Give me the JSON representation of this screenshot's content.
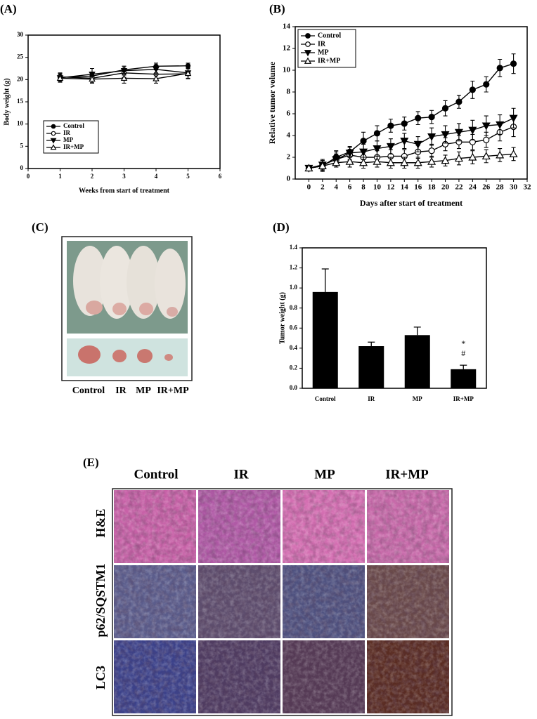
{
  "panel_labels": [
    "(A)",
    "(B)",
    "(C)",
    "(D)",
    "(E)"
  ],
  "chart_data": [
    {
      "type": "line",
      "x_label": "Weeks from start of treatment",
      "y_label": "Body weight (g)",
      "x": [
        1,
        2,
        3,
        4,
        5
      ],
      "xlim": [
        0,
        6
      ],
      "ylim": [
        0,
        30
      ],
      "xticks": [
        0,
        1,
        2,
        3,
        4,
        5,
        6
      ],
      "yticks": [
        0,
        5,
        10,
        15,
        20,
        25,
        30
      ],
      "legend": "lower left",
      "series": [
        {
          "name": "Control",
          "marker": "filled-circle",
          "color": "#000000",
          "values": [
            20.5,
            20.8,
            22.2,
            23.0,
            23.1
          ],
          "errors": [
            0.8,
            0.9,
            0.8,
            0.7,
            0.6
          ]
        },
        {
          "name": "IR",
          "marker": "open-circle",
          "color": "#000000",
          "values": [
            20.6,
            20.3,
            21.5,
            21.2,
            21.3
          ],
          "errors": [
            0.9,
            1.0,
            1.0,
            1.0,
            1.1
          ]
        },
        {
          "name": "MP",
          "marker": "filled-triangle-down",
          "color": "#000000",
          "values": [
            20.4,
            21.2,
            22.0,
            22.3,
            21.5
          ],
          "errors": [
            0.8,
            1.3,
            1.0,
            1.0,
            1.2
          ]
        },
        {
          "name": "IR+MP",
          "marker": "open-triangle-up",
          "color": "#000000",
          "values": [
            20.3,
            20.1,
            20.3,
            20.2,
            21.4
          ],
          "errors": [
            0.9,
            0.9,
            1.1,
            1.0,
            1.2
          ]
        }
      ]
    },
    {
      "type": "line",
      "x_label": "Days after start of treatment",
      "y_label": "Relative tumor volume",
      "x": [
        0,
        2,
        4,
        6,
        8,
        10,
        12,
        14,
        16,
        18,
        20,
        22,
        24,
        26,
        28,
        30
      ],
      "xlim": [
        -2,
        32
      ],
      "ylim": [
        0,
        14
      ],
      "xticks": [
        0,
        2,
        4,
        6,
        8,
        10,
        12,
        14,
        16,
        18,
        20,
        22,
        24,
        26,
        28,
        30,
        32
      ],
      "yticks": [
        0,
        2,
        4,
        6,
        8,
        10,
        12,
        14
      ],
      "legend": "upper left",
      "series": [
        {
          "name": "Control",
          "marker": "filled-circle",
          "color": "#000000",
          "values": [
            1.0,
            1.2,
            2.0,
            2.5,
            3.5,
            4.2,
            4.9,
            5.1,
            5.6,
            5.7,
            6.5,
            7.1,
            8.2,
            8.7,
            10.2,
            10.6
          ],
          "errors": [
            0.1,
            0.5,
            0.6,
            0.4,
            0.8,
            0.7,
            0.6,
            0.6,
            0.6,
            0.6,
            0.7,
            0.6,
            0.8,
            0.7,
            0.8,
            0.9
          ]
        },
        {
          "name": "IR",
          "marker": "open-circle",
          "color": "#000000",
          "values": [
            1.0,
            1.3,
            1.8,
            2.2,
            2.0,
            2.0,
            2.1,
            2.1,
            2.5,
            2.6,
            3.2,
            3.4,
            3.4,
            3.6,
            4.3,
            4.8
          ],
          "errors": [
            0.1,
            0.4,
            0.5,
            0.5,
            0.6,
            0.6,
            0.6,
            0.6,
            0.6,
            0.6,
            0.6,
            0.6,
            0.7,
            0.7,
            0.8,
            0.9
          ]
        },
        {
          "name": "MP",
          "marker": "filled-triangle-down",
          "color": "#000000",
          "values": [
            1.0,
            1.3,
            1.8,
            2.4,
            2.5,
            2.8,
            3.0,
            3.5,
            3.2,
            3.9,
            4.1,
            4.3,
            4.5,
            4.9,
            5.0,
            5.6
          ],
          "errors": [
            0.1,
            0.5,
            0.7,
            0.6,
            0.7,
            0.7,
            0.7,
            0.7,
            0.7,
            0.8,
            0.8,
            0.8,
            0.9,
            0.9,
            0.9,
            0.9
          ]
        },
        {
          "name": "IR+MP",
          "marker": "open-triangle-up",
          "color": "#000000",
          "values": [
            1.0,
            1.2,
            1.5,
            1.6,
            1.5,
            1.6,
            1.5,
            1.5,
            1.5,
            1.6,
            1.7,
            1.9,
            2.0,
            2.1,
            2.2,
            2.3
          ],
          "errors": [
            0.1,
            0.3,
            0.4,
            0.5,
            0.5,
            0.5,
            0.5,
            0.5,
            0.5,
            0.5,
            0.5,
            0.6,
            0.6,
            0.6,
            0.6,
            0.6
          ]
        }
      ]
    },
    {
      "type": "bar",
      "y_label": "Tumor weight (g)",
      "categories": [
        "Control",
        "IR",
        "MP",
        "IR+MP"
      ],
      "values": [
        0.96,
        0.42,
        0.53,
        0.19
      ],
      "errors": [
        0.23,
        0.04,
        0.08,
        0.04
      ],
      "color": "#000000",
      "ylim": [
        0,
        1.4
      ],
      "yticks": [
        {
          "value": 0,
          "label": "0.0"
        },
        0.2,
        0.4,
        0.6,
        0.8,
        {
          "value": 1,
          "label": "1.0"
        },
        1.2,
        1.4
      ],
      "annotations": [
        "*",
        "#"
      ]
    }
  ],
  "photo_panel": {
    "labels": [
      "Control",
      "IR",
      "MP",
      "IR+MP"
    ]
  },
  "histology_panel": {
    "columns": [
      "Control",
      "IR",
      "MP",
      "IR+MP"
    ],
    "rows": [
      "H&E",
      "p62/SQSTM1",
      "LC3"
    ]
  }
}
